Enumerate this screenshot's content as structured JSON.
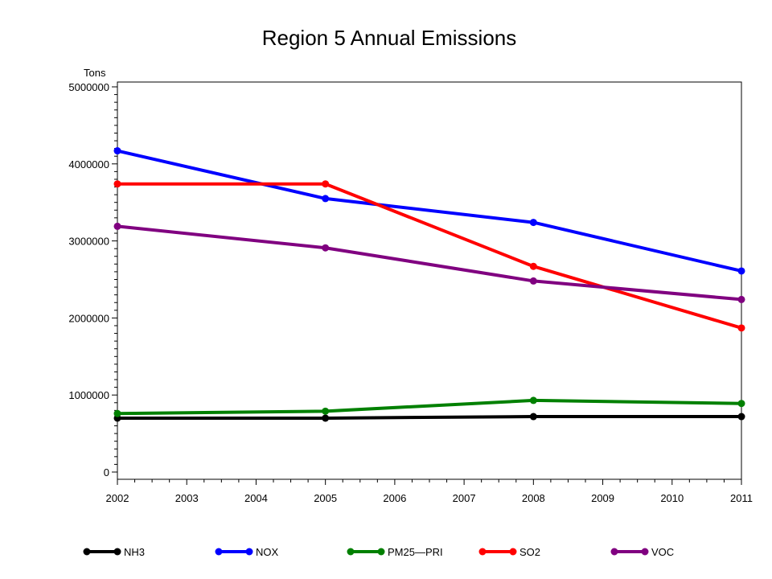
{
  "chart_data": {
    "type": "line",
    "title": "Region 5 Annual Emissions",
    "ylabel": "Tons",
    "xlabel": "",
    "x_ticks": [
      2002,
      2003,
      2004,
      2005,
      2006,
      2007,
      2008,
      2009,
      2010,
      2011
    ],
    "xlim": [
      2002,
      2011
    ],
    "ylim": [
      0,
      5000000
    ],
    "y_ticks": [
      0,
      1000000,
      2000000,
      3000000,
      4000000,
      5000000
    ],
    "grid": false,
    "legend_position": "bottom",
    "x": [
      2002,
      2005,
      2008,
      2011
    ],
    "series": [
      {
        "name": "NH3",
        "color": "#000000",
        "values": [
          700000,
          700000,
          720000,
          720000
        ]
      },
      {
        "name": "NOX",
        "color": "#0000ff",
        "values": [
          4170000,
          3550000,
          3240000,
          2610000
        ]
      },
      {
        "name": "PM25—PRI",
        "color": "#008000",
        "values": [
          760000,
          790000,
          930000,
          890000
        ]
      },
      {
        "name": "SO2",
        "color": "#ff0000",
        "values": [
          3740000,
          3740000,
          2670000,
          1870000
        ]
      },
      {
        "name": "VOC",
        "color": "#800080",
        "values": [
          3190000,
          2910000,
          2480000,
          2240000
        ]
      }
    ]
  }
}
